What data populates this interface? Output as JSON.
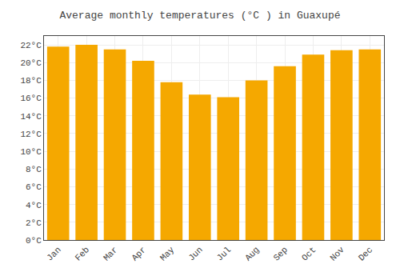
{
  "chart_data": {
    "type": "bar",
    "title": "Average monthly temperatures (°C ) in Guaxupé",
    "categories": [
      "Jan",
      "Feb",
      "Mar",
      "Apr",
      "May",
      "Jun",
      "Jul",
      "Aug",
      "Sep",
      "Oct",
      "Nov",
      "Dec"
    ],
    "values": [
      21.8,
      22.0,
      21.5,
      20.2,
      17.8,
      16.4,
      16.1,
      18.0,
      19.6,
      20.9,
      21.4,
      21.5
    ],
    "color": "#F5A800",
    "ylim": [
      0,
      23
    ],
    "yticks": [
      {
        "value": 0,
        "label": "0°C"
      },
      {
        "value": 2,
        "label": "2°C"
      },
      {
        "value": 4,
        "label": "4°C"
      },
      {
        "value": 6,
        "label": "6°C"
      },
      {
        "value": 8,
        "label": "8°C"
      },
      {
        "value": 10,
        "label": "10°C"
      },
      {
        "value": 12,
        "label": "12°C"
      },
      {
        "value": 14,
        "label": "14°C"
      },
      {
        "value": 16,
        "label": "16°C"
      },
      {
        "value": 18,
        "label": "18°C"
      },
      {
        "value": 20,
        "label": "20°C"
      },
      {
        "value": 22,
        "label": "22°C"
      }
    ],
    "grid": true
  }
}
